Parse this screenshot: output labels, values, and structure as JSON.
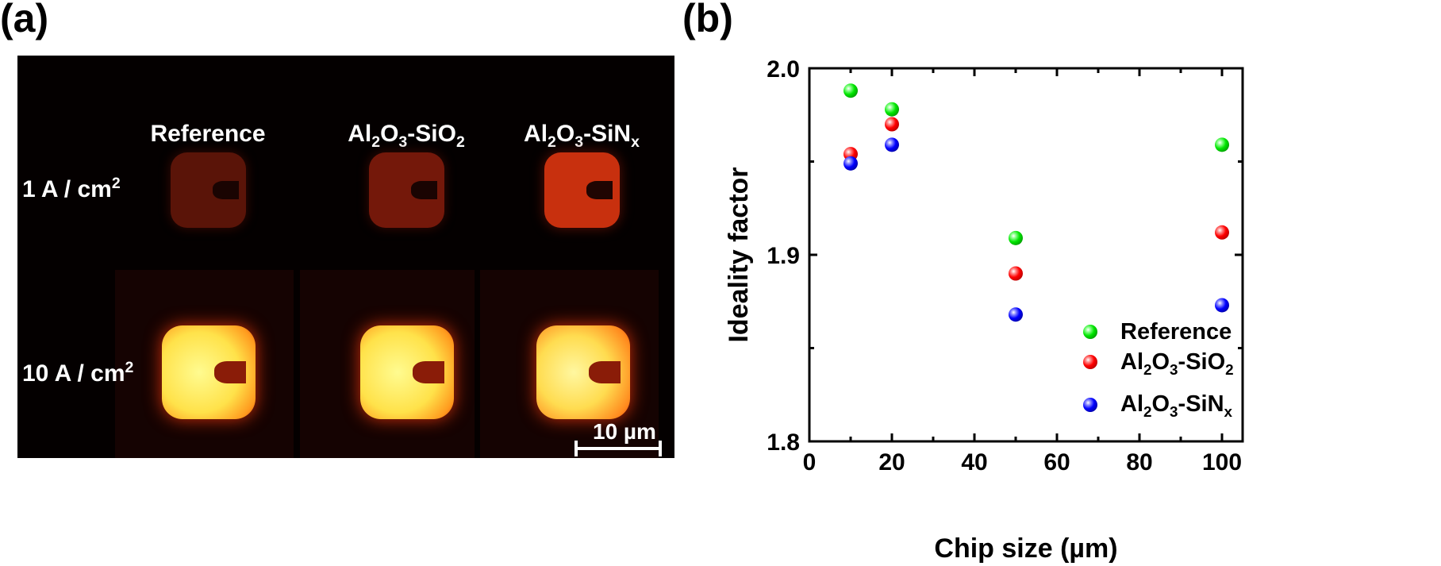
{
  "panel_a": {
    "label": "(a)",
    "columns": [
      "Reference",
      "Al2O3-SiO2",
      "Al2O3-SiNx"
    ],
    "rows": [
      "1 A / cm2",
      "10 A / cm2"
    ],
    "scale_bar": "10 µm"
  },
  "panel_b": {
    "label": "(b)"
  },
  "chart_data": {
    "type": "scatter",
    "xlabel": "Chip size (µm)",
    "ylabel": "Ideality factor",
    "xlim": [
      0,
      105
    ],
    "ylim": [
      1.8,
      2.0
    ],
    "xticks": [
      0,
      20,
      40,
      60,
      80,
      100
    ],
    "yticks": [
      1.8,
      1.9,
      2.0
    ],
    "grid": false,
    "legend_position": "bottom-right",
    "x": [
      10,
      20,
      50,
      100
    ],
    "series": [
      {
        "name": "Reference",
        "color": "#00e600",
        "values": [
          1.988,
          1.978,
          1.909,
          1.959
        ]
      },
      {
        "name": "Al2O3-SiO2",
        "color": "#ff0000",
        "values": [
          1.954,
          1.97,
          1.89,
          1.912
        ]
      },
      {
        "name": "Al2O3-SiNx",
        "color": "#0000ff",
        "values": [
          1.949,
          1.959,
          1.868,
          1.873
        ]
      }
    ]
  }
}
